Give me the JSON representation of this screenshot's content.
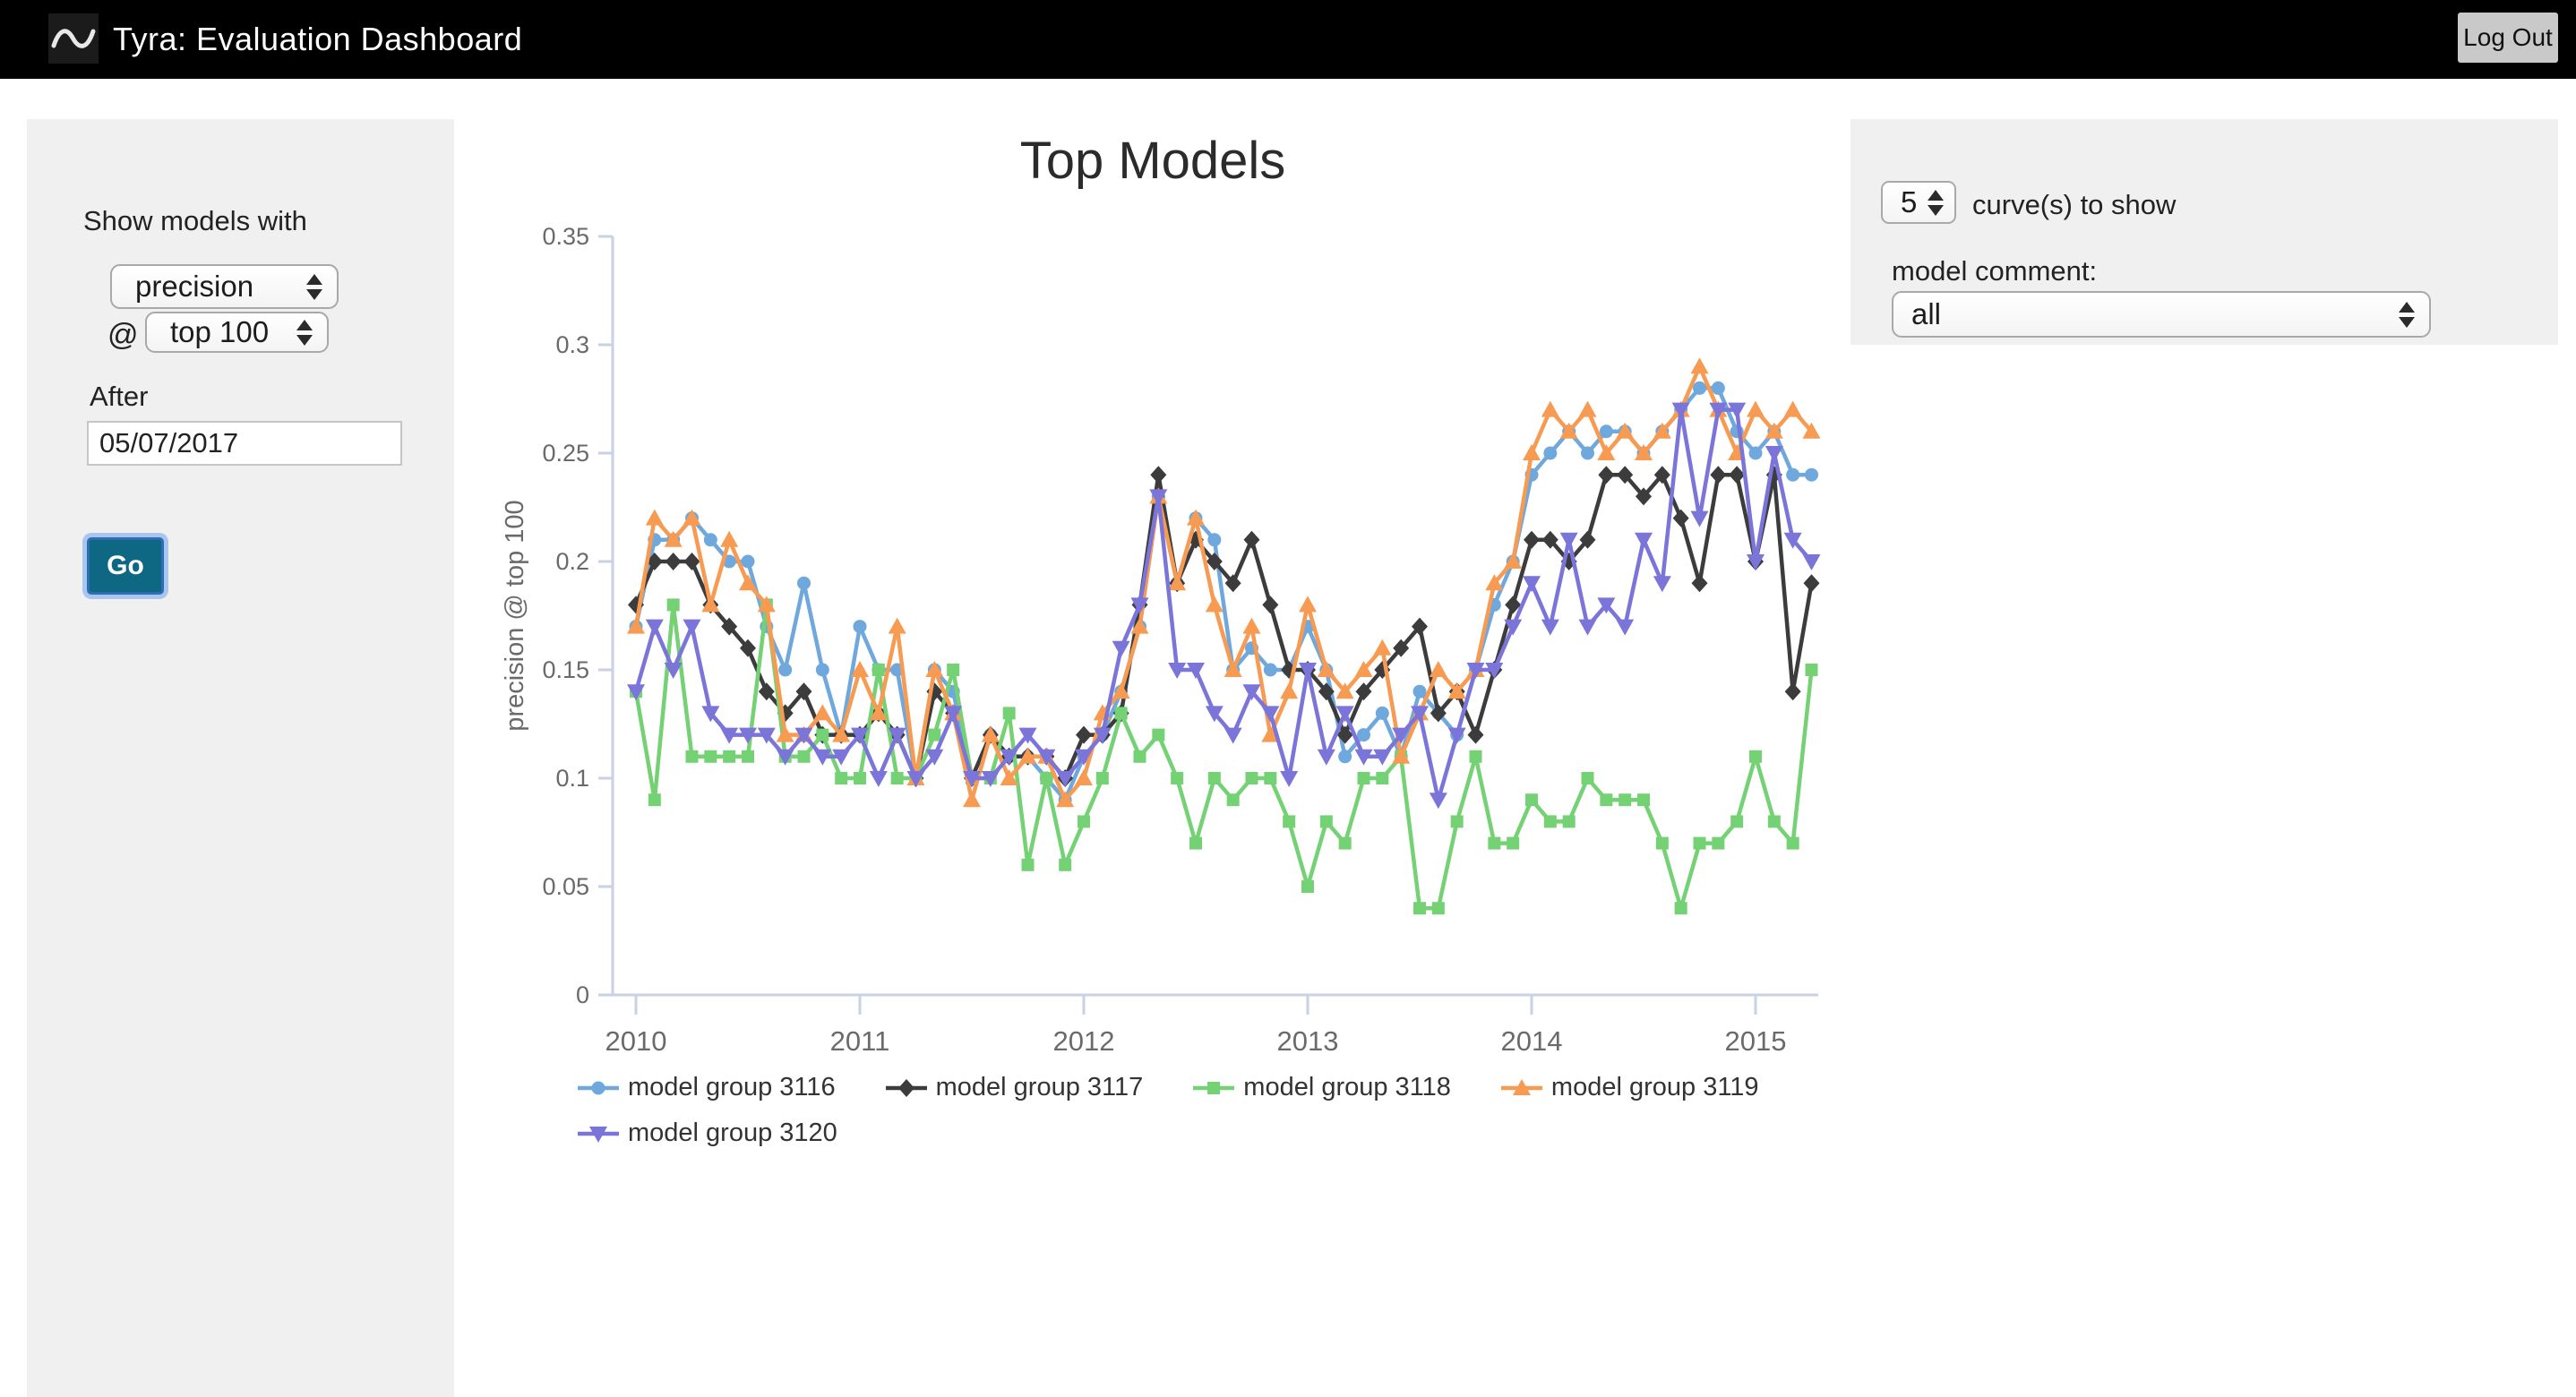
{
  "header": {
    "title": "Tyra: Evaluation Dashboard",
    "logout_label": "Log Out"
  },
  "sidebar": {
    "heading": "Show models with",
    "metric_select": {
      "value": "precision"
    },
    "at_symbol": "@",
    "threshold_select": {
      "value": "top 100"
    },
    "after_label": "After",
    "after_input": {
      "value": "05/07/2017"
    },
    "go_label": "Go"
  },
  "controls": {
    "curves_select": {
      "value": "5"
    },
    "curves_label": "curve(s) to show",
    "comment_label": "model comment:",
    "comment_select": {
      "value": "all"
    }
  },
  "chart_data": {
    "type": "line",
    "title": "Top Models",
    "xlabel": "",
    "ylabel": "precision @ top 100",
    "ylim": [
      0,
      0.35
    ],
    "xlim": [
      2009.9,
      2015.45
    ],
    "yticks": [
      0,
      0.05,
      0.1,
      0.15,
      0.2,
      0.25,
      0.3,
      0.35
    ],
    "xticks": [
      2010,
      2011,
      2012,
      2013,
      2014,
      2015
    ],
    "x_start": 2010.0,
    "x_step": 0.0833,
    "grid": false,
    "legend_position": "bottom",
    "axis_color": "#c7d2e2",
    "tick_label_color": "#6a6a6a",
    "series": [
      {
        "name": "model group 3116",
        "color": "#6fa8dc",
        "marker": "circle",
        "values": [
          0.17,
          0.21,
          0.21,
          0.22,
          0.21,
          0.2,
          0.2,
          0.17,
          0.15,
          0.19,
          0.15,
          0.12,
          0.17,
          0.15,
          0.15,
          0.1,
          0.15,
          0.14,
          0.1,
          0.12,
          0.11,
          0.11,
          0.1,
          0.09,
          0.11,
          0.12,
          0.14,
          0.17,
          0.23,
          0.19,
          0.22,
          0.21,
          0.15,
          0.16,
          0.15,
          0.15,
          0.17,
          0.15,
          0.11,
          0.12,
          0.13,
          0.11,
          0.14,
          0.13,
          0.12,
          0.15,
          0.18,
          0.2,
          0.24,
          0.25,
          0.26,
          0.25,
          0.26,
          0.26,
          0.25,
          0.26,
          0.27,
          0.28,
          0.28,
          0.26,
          0.25,
          0.26,
          0.24,
          0.24
        ]
      },
      {
        "name": "model group 3117",
        "color": "#3c3c3c",
        "marker": "diamond",
        "values": [
          0.18,
          0.2,
          0.2,
          0.2,
          0.18,
          0.17,
          0.16,
          0.14,
          0.13,
          0.14,
          0.12,
          0.12,
          0.12,
          0.13,
          0.12,
          0.1,
          0.14,
          0.13,
          0.1,
          0.12,
          0.11,
          0.11,
          0.11,
          0.1,
          0.12,
          0.12,
          0.13,
          0.18,
          0.24,
          0.19,
          0.21,
          0.2,
          0.19,
          0.21,
          0.18,
          0.15,
          0.15,
          0.14,
          0.12,
          0.14,
          0.15,
          0.16,
          0.17,
          0.13,
          0.14,
          0.12,
          0.15,
          0.18,
          0.21,
          0.21,
          0.2,
          0.21,
          0.24,
          0.24,
          0.23,
          0.24,
          0.22,
          0.19,
          0.24,
          0.24,
          0.2,
          0.24,
          0.14,
          0.19
        ]
      },
      {
        "name": "model group 3118",
        "color": "#74d274",
        "marker": "square",
        "values": [
          0.14,
          0.09,
          0.18,
          0.11,
          0.11,
          0.11,
          0.11,
          0.18,
          0.11,
          0.11,
          0.12,
          0.1,
          0.1,
          0.15,
          0.1,
          0.1,
          0.12,
          0.15,
          0.1,
          0.1,
          0.13,
          0.06,
          0.1,
          0.06,
          0.08,
          0.1,
          0.13,
          0.11,
          0.12,
          0.1,
          0.07,
          0.1,
          0.09,
          0.1,
          0.1,
          0.08,
          0.05,
          0.08,
          0.07,
          0.1,
          0.1,
          0.11,
          0.04,
          0.04,
          0.08,
          0.11,
          0.07,
          0.07,
          0.09,
          0.08,
          0.08,
          0.1,
          0.09,
          0.09,
          0.09,
          0.07,
          0.04,
          0.07,
          0.07,
          0.08,
          0.11,
          0.08,
          0.07,
          0.15
        ]
      },
      {
        "name": "model group 3119",
        "color": "#f79a52",
        "marker": "triangle-up",
        "values": [
          0.17,
          0.22,
          0.21,
          0.22,
          0.18,
          0.21,
          0.19,
          0.18,
          0.12,
          0.12,
          0.13,
          0.12,
          0.15,
          0.13,
          0.17,
          0.1,
          0.15,
          0.13,
          0.09,
          0.12,
          0.1,
          0.11,
          0.11,
          0.09,
          0.1,
          0.13,
          0.14,
          0.17,
          0.23,
          0.19,
          0.22,
          0.18,
          0.15,
          0.17,
          0.12,
          0.14,
          0.18,
          0.15,
          0.14,
          0.15,
          0.16,
          0.11,
          0.13,
          0.15,
          0.14,
          0.15,
          0.19,
          0.2,
          0.25,
          0.27,
          0.26,
          0.27,
          0.25,
          0.26,
          0.25,
          0.26,
          0.27,
          0.29,
          0.27,
          0.25,
          0.27,
          0.26,
          0.27,
          0.26
        ]
      },
      {
        "name": "model group 3120",
        "color": "#7b74d9",
        "marker": "triangle-down",
        "values": [
          0.14,
          0.17,
          0.15,
          0.17,
          0.13,
          0.12,
          0.12,
          0.12,
          0.11,
          0.12,
          0.11,
          0.11,
          0.12,
          0.1,
          0.12,
          0.1,
          0.11,
          0.13,
          0.1,
          0.1,
          0.11,
          0.12,
          0.11,
          0.1,
          0.11,
          0.12,
          0.16,
          0.18,
          0.23,
          0.15,
          0.15,
          0.13,
          0.12,
          0.14,
          0.13,
          0.1,
          0.15,
          0.11,
          0.13,
          0.11,
          0.11,
          0.12,
          0.13,
          0.09,
          0.12,
          0.15,
          0.15,
          0.17,
          0.19,
          0.17,
          0.21,
          0.17,
          0.18,
          0.17,
          0.21,
          0.19,
          0.27,
          0.22,
          0.27,
          0.27,
          0.2,
          0.25,
          0.21,
          0.2
        ]
      }
    ]
  }
}
